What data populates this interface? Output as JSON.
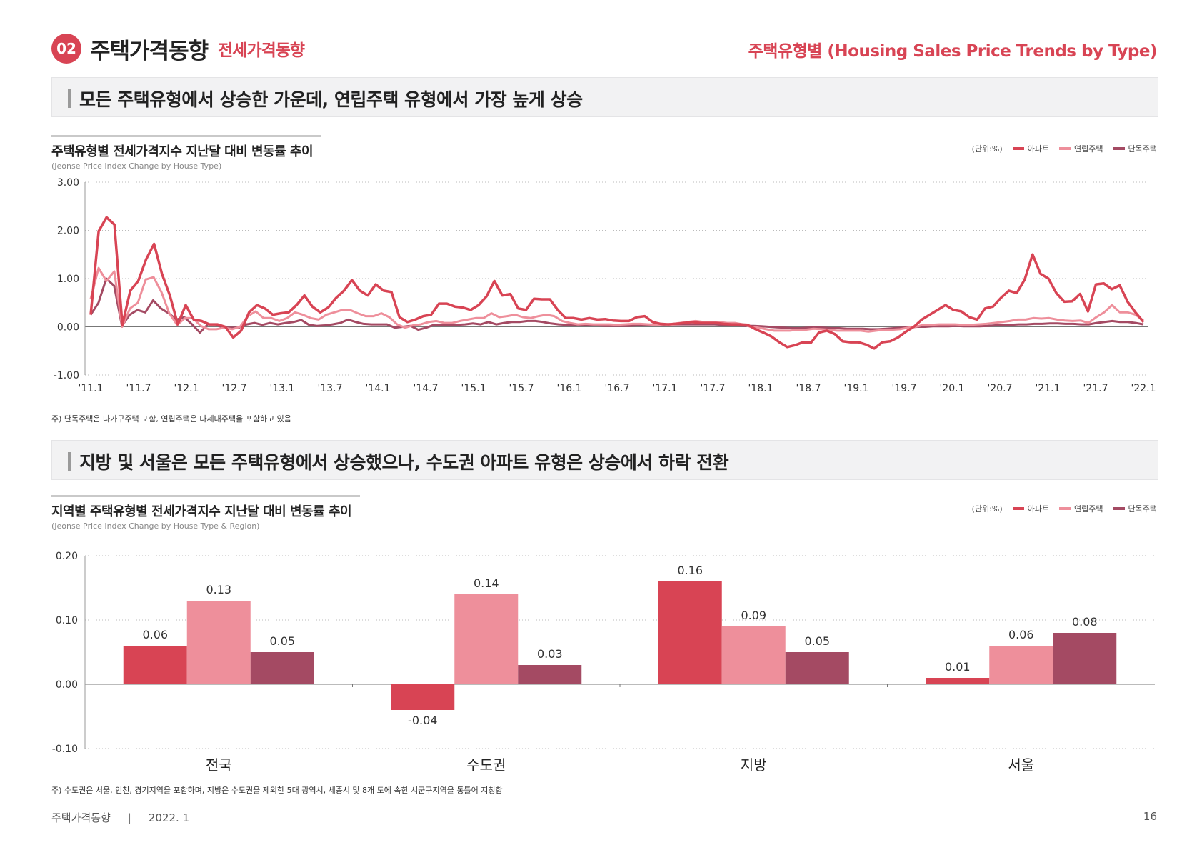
{
  "header": {
    "badge": "02",
    "title": "주택가격동향",
    "subtitle": "전세가격동향",
    "right_title": "주택유형별 (Housing Sales Price Trends by Type)"
  },
  "section1": {
    "headline": "모든 주택유형에서 상승한 가운데, 연립주택 유형에서 가장 높게 상승",
    "chart_title": "주택유형별 전세가격지수 지난달 대비 변동률 추이",
    "chart_subtitle": "(Jeonse Price Index Change by House Type)",
    "note": "주) 단독주택은 다가구주택 포함, 연립주택은 다세대주택을 포함하고 있음"
  },
  "section2": {
    "headline": "지방 및 서울은 모든 주택유형에서 상승했으나, 수도권 아파트 유형은 상승에서 하락 전환",
    "chart_title": "지역별 주택유형별 전세가격지수 지난달 대비 변동률 추이",
    "chart_subtitle": "(Jeonse Price Index Change by House Type & Region)",
    "note": "주) 수도권은 서울, 인천, 경기지역을 포함하며, 지방은 수도권을 제외한 5대 광역시, 세종시 및 8개 도에 속한 시군구지역을 통틀어 지칭함"
  },
  "legend": {
    "unit": "(단위:%)",
    "items": [
      "아파트",
      "연립주택",
      "단독주택"
    ]
  },
  "colors": {
    "apt": "#d84454",
    "row": "#ee8f9b",
    "det": "#a44a63",
    "accent": "#d84454"
  },
  "footer": {
    "left": "주택가격동향",
    "sep": "|",
    "date": "2022. 1",
    "page": "16"
  },
  "chart_data": [
    {
      "type": "line",
      "x_ticks": [
        "'11.1",
        "'11.7",
        "'12.1",
        "'12.7",
        "'13.1",
        "'13.7",
        "'14.1",
        "'14.7",
        "'15.1",
        "'15.7",
        "'16.1",
        "'16.7",
        "'17.1",
        "'17.7",
        "'18.1",
        "'18.7",
        "'19.1",
        "'19.7",
        "'20.1",
        "'20.7",
        "'21.1",
        "'21.7",
        "'22.1"
      ],
      "y_ticks": [
        "3.00",
        "2.00",
        "1.00",
        "0.00",
        "-1.00"
      ],
      "ylim": [
        -1,
        3
      ],
      "x_start": "2011-01",
      "x_end": "2022-01",
      "series": [
        {
          "name": "아파트",
          "values": [
            0.25,
            1.98,
            2.27,
            2.12,
            0.04,
            0.75,
            0.95,
            1.4,
            1.72,
            1.1,
            0.65,
            0.05,
            0.45,
            0.15,
            0.12,
            0.05,
            0.05,
            0.0,
            -0.22,
            -0.08,
            0.3,
            0.45,
            0.38,
            0.25,
            0.28,
            0.3,
            0.45,
            0.65,
            0.42,
            0.3,
            0.4,
            0.6,
            0.75,
            0.97,
            0.75,
            0.65,
            0.88,
            0.75,
            0.72,
            0.2,
            0.1,
            0.15,
            0.22,
            0.25,
            0.48,
            0.48,
            0.42,
            0.4,
            0.35,
            0.45,
            0.63,
            0.95,
            0.65,
            0.68,
            0.38,
            0.35,
            0.58,
            0.57,
            0.57,
            0.35,
            0.18,
            0.18,
            0.15,
            0.18,
            0.15,
            0.16,
            0.13,
            0.12,
            0.12,
            0.2,
            0.22,
            0.1,
            0.06,
            0.05,
            0.06,
            0.08,
            0.1,
            0.08,
            0.08,
            0.08,
            0.06,
            0.05,
            0.05,
            0.04,
            -0.05,
            -0.12,
            -0.2,
            -0.32,
            -0.42,
            -0.38,
            -0.32,
            -0.33,
            -0.12,
            -0.08,
            -0.15,
            -0.3,
            -0.32,
            -0.32,
            -0.37,
            -0.45,
            -0.32,
            -0.3,
            -0.22,
            -0.1,
            0.0,
            0.15,
            0.25,
            0.35,
            0.45,
            0.35,
            0.32,
            0.2,
            0.15,
            0.38,
            0.42,
            0.6,
            0.75,
            0.7,
            0.98,
            1.5,
            1.1,
            1.0,
            0.7,
            0.52,
            0.53,
            0.68,
            0.32,
            0.88,
            0.9,
            0.78,
            0.86,
            0.52,
            0.3,
            0.1
          ]
        },
        {
          "name": "연립주택",
          "values": [
            0.58,
            1.22,
            0.95,
            1.15,
            0.0,
            0.38,
            0.5,
            0.98,
            1.03,
            0.72,
            0.28,
            0.04,
            0.18,
            0.18,
            0.02,
            -0.05,
            -0.05,
            -0.02,
            -0.05,
            0.0,
            0.22,
            0.32,
            0.18,
            0.18,
            0.12,
            0.18,
            0.3,
            0.25,
            0.18,
            0.15,
            0.25,
            0.3,
            0.35,
            0.35,
            0.28,
            0.22,
            0.22,
            0.28,
            0.2,
            0.05,
            -0.02,
            0.03,
            0.05,
            0.1,
            0.12,
            0.08,
            0.08,
            0.12,
            0.15,
            0.18,
            0.18,
            0.28,
            0.2,
            0.22,
            0.25,
            0.2,
            0.18,
            0.22,
            0.25,
            0.22,
            0.12,
            0.08,
            0.05,
            0.06,
            0.05,
            0.05,
            0.05,
            0.04,
            0.05,
            0.06,
            0.06,
            0.05,
            0.04,
            0.05,
            0.06,
            0.08,
            0.1,
            0.12,
            0.1,
            0.1,
            0.1,
            0.08,
            0.08,
            0.05,
            0.0,
            -0.02,
            -0.05,
            -0.08,
            -0.08,
            -0.08,
            -0.06,
            -0.06,
            -0.04,
            -0.05,
            -0.06,
            -0.08,
            -0.08,
            -0.08,
            -0.08,
            -0.1,
            -0.08,
            -0.06,
            -0.06,
            -0.05,
            -0.02,
            0.0,
            0.04,
            0.04,
            0.05,
            0.05,
            0.05,
            0.04,
            0.04,
            0.05,
            0.06,
            0.08,
            0.1,
            0.12,
            0.15,
            0.15,
            0.18,
            0.17,
            0.18,
            0.15,
            0.13,
            0.12,
            0.13,
            0.08,
            0.2,
            0.3,
            0.45,
            0.3,
            0.3,
            0.25,
            0.13
          ]
        },
        {
          "name": "단독주택",
          "values": [
            0.25,
            0.5,
            1.0,
            0.85,
            0.02,
            0.25,
            0.35,
            0.3,
            0.55,
            0.38,
            0.28,
            0.15,
            0.2,
            0.05,
            -0.12,
            0.05,
            0.05,
            -0.02,
            -0.02,
            -0.02,
            0.05,
            0.08,
            0.04,
            0.08,
            0.05,
            0.08,
            0.1,
            0.14,
            0.04,
            0.02,
            0.03,
            0.05,
            0.08,
            0.15,
            0.1,
            0.06,
            0.05,
            0.05,
            0.05,
            -0.02,
            0.0,
            0.02,
            -0.06,
            -0.02,
            0.04,
            0.04,
            0.04,
            0.04,
            0.05,
            0.07,
            0.05,
            0.1,
            0.05,
            0.08,
            0.1,
            0.1,
            0.12,
            0.12,
            0.1,
            0.07,
            0.05,
            0.04,
            0.04,
            0.03,
            0.03,
            0.03,
            0.02,
            0.02,
            0.02,
            0.02,
            0.03,
            0.03,
            0.04,
            0.04,
            0.05,
            0.05,
            0.05,
            0.05,
            0.05,
            0.05,
            0.05,
            0.04,
            0.03,
            0.03,
            0.02,
            0.02,
            0.01,
            0.0,
            -0.01,
            -0.02,
            -0.03,
            -0.03,
            -0.02,
            -0.01,
            -0.02,
            -0.03,
            -0.03,
            -0.04,
            -0.04,
            -0.04,
            -0.05,
            -0.05,
            -0.04,
            -0.03,
            -0.02,
            -0.01,
            0.0,
            0.0,
            0.01,
            0.01,
            0.01,
            0.02,
            0.01,
            0.01,
            0.01,
            0.02,
            0.03,
            0.03,
            0.04,
            0.05,
            0.05,
            0.06,
            0.06,
            0.07,
            0.07,
            0.06,
            0.06,
            0.05,
            0.05,
            0.08,
            0.1,
            0.12,
            0.1,
            0.1,
            0.08,
            0.05
          ]
        }
      ]
    },
    {
      "type": "bar",
      "categories": [
        "전국",
        "수도권",
        "지방",
        "서울"
      ],
      "y_ticks": [
        "0.20",
        "0.10",
        "0.00",
        "-0.10"
      ],
      "ylim": [
        -0.1,
        0.2
      ],
      "series": [
        {
          "name": "아파트",
          "values": [
            0.06,
            -0.04,
            0.16,
            0.01
          ],
          "labels": [
            "0.06",
            "-0.04",
            "0.16",
            "0.01"
          ]
        },
        {
          "name": "연립주택",
          "values": [
            0.13,
            0.14,
            0.09,
            0.06
          ],
          "labels": [
            "0.13",
            "0.14",
            "0.09",
            "0.06"
          ]
        },
        {
          "name": "단독주택",
          "values": [
            0.05,
            0.03,
            0.05,
            0.08
          ],
          "labels": [
            "0.05",
            "0.03",
            "0.05",
            "0.08"
          ]
        }
      ]
    }
  ]
}
